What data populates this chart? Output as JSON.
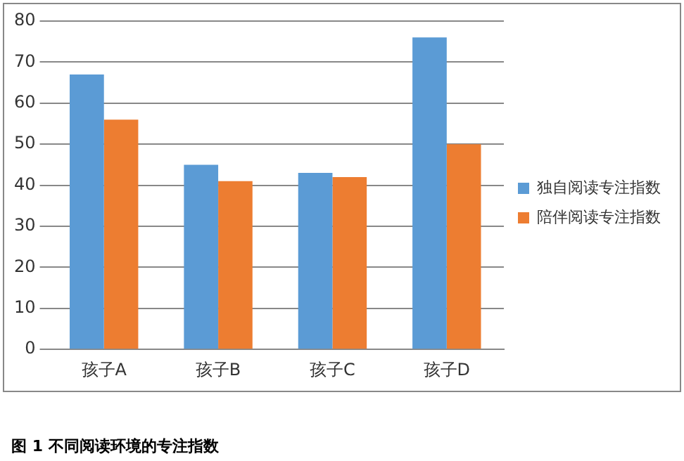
{
  "chart_data": {
    "type": "bar",
    "categories": [
      "孩子A",
      "孩子B",
      "孩子C",
      "孩子D"
    ],
    "series": [
      {
        "name": "独自阅读专注指数",
        "color": "#5b9bd5",
        "values": [
          67,
          45,
          43,
          76
        ]
      },
      {
        "name": "陪伴阅读专注指数",
        "color": "#ed7d31",
        "values": [
          56,
          41,
          42,
          50
        ]
      }
    ],
    "ylim": [
      0,
      80
    ],
    "yticks": [
      0,
      10,
      20,
      30,
      40,
      50,
      60,
      70,
      80
    ],
    "grid": "y",
    "legend": "right",
    "annotations": [
      "图 1 不同阅读环境的专注指数"
    ]
  }
}
